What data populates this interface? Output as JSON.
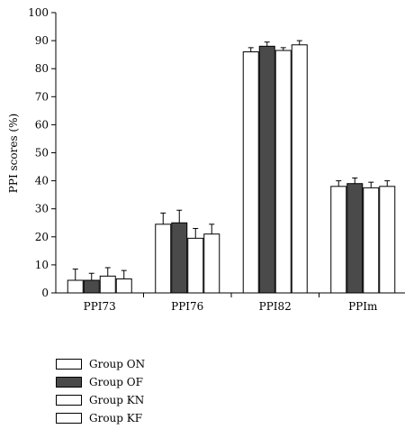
{
  "chart_data": {
    "type": "bar",
    "ylabel": "PPI scores (%)",
    "xlabel": "",
    "ylim": [
      0,
      100
    ],
    "yticks": [
      0,
      10,
      20,
      30,
      40,
      50,
      60,
      70,
      80,
      90,
      100
    ],
    "grid": false,
    "categories": [
      "PPI73",
      "PPI76",
      "PPI82",
      "PPIm"
    ],
    "series": [
      {
        "name": "Group ON",
        "color": "#ffffff",
        "values": [
          4.5,
          24.5,
          86,
          38
        ],
        "errors": [
          4,
          4,
          1.5,
          2
        ]
      },
      {
        "name": "Group OF",
        "color": "#4a4a4a",
        "values": [
          4.5,
          25,
          88,
          39
        ],
        "errors": [
          2.5,
          4.5,
          1.5,
          2
        ]
      },
      {
        "name": "Group KN",
        "color": "#ffffff",
        "values": [
          6,
          19.5,
          86.5,
          37.5
        ],
        "errors": [
          3,
          3.5,
          1,
          2
        ]
      },
      {
        "name": "Group KF",
        "color": "#ffffff",
        "values": [
          5,
          21,
          88.5,
          38
        ],
        "errors": [
          3,
          3.5,
          1.5,
          2
        ]
      }
    ],
    "legend_position": "bottom-left"
  }
}
